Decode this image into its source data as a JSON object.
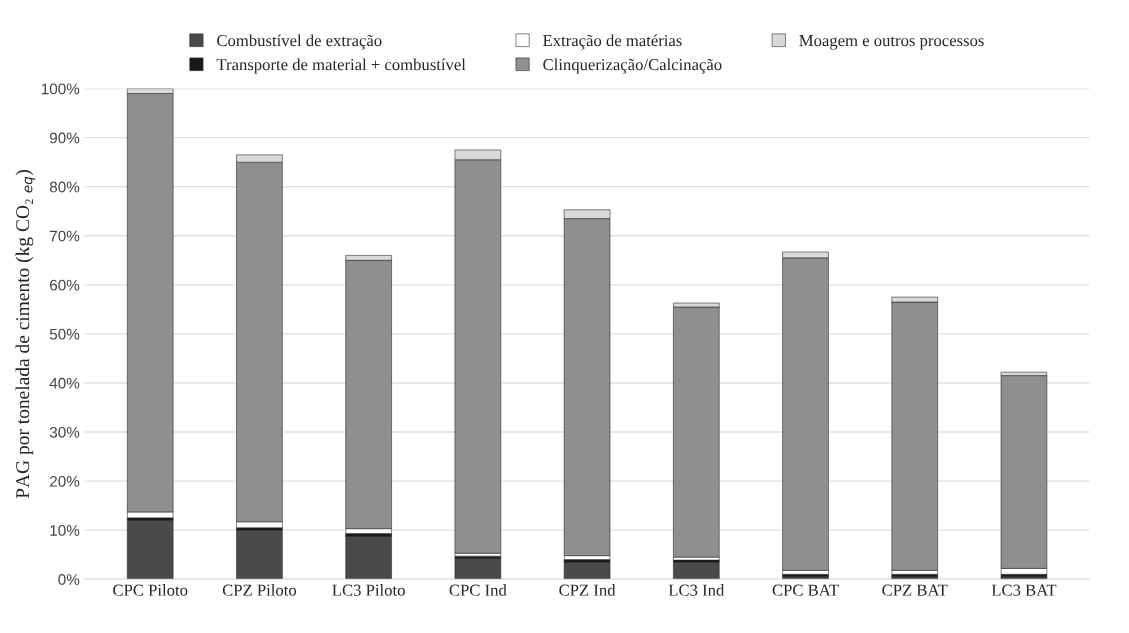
{
  "chart_data": {
    "type": "bar",
    "stacked": true,
    "ylabel": "PAG por tonelada de cimento (kg CO₂ $_{eq}$)",
    "categories": [
      "CPC Piloto",
      "CPZ Piloto",
      "LC3 Piloto",
      "CPC Ind",
      "CPZ Ind",
      "LC3 Ind",
      "CPC BAT",
      "CPZ BAT",
      "LC3 BAT"
    ],
    "series": [
      {
        "name": "Combustível de extração",
        "color": "#4a4a4a",
        "values": [
          12,
          10,
          8.8,
          4.3,
          3.5,
          3.5,
          0.5,
          0.5,
          0.5
        ]
      },
      {
        "name": "Transporte de material + combustível",
        "color": "#1a1a1a",
        "values": [
          0.5,
          0.5,
          0.5,
          0.4,
          0.5,
          0.4,
          0.5,
          0.5,
          0.5
        ]
      },
      {
        "name": "Extração de matérias",
        "color": "#ffffff",
        "values": [
          1.2,
          1.2,
          1.0,
          0.6,
          0.8,
          0.6,
          0.8,
          0.8,
          1.2
        ]
      },
      {
        "name": "Clinquerização/Calcinação",
        "color": "#8f8f8f",
        "values": [
          85.3,
          73.3,
          54.7,
          80.2,
          68.7,
          51,
          63.7,
          54.7,
          39.3
        ]
      },
      {
        "name": "Moagem e outros processos",
        "color": "#d9d9d9",
        "values": [
          1,
          1.5,
          1,
          2,
          1.8,
          0.8,
          1.2,
          1,
          0.7
        ]
      }
    ],
    "ylim": [
      0,
      100
    ],
    "yticks": [
      {
        "value": 0,
        "label": "0%"
      },
      {
        "value": 10,
        "label": "10%"
      },
      {
        "value": 20,
        "label": "20%"
      },
      {
        "value": 30,
        "label": "30%"
      },
      {
        "value": 40,
        "label": "40%"
      },
      {
        "value": 50,
        "label": "50%"
      },
      {
        "value": 60,
        "label": "60%"
      },
      {
        "value": 70,
        "label": "70%"
      },
      {
        "value": 80,
        "label": "80%"
      },
      {
        "value": 90,
        "label": "90%"
      },
      {
        "value": 100,
        "label": "100%"
      }
    ],
    "grid": "y",
    "legend": "top"
  }
}
